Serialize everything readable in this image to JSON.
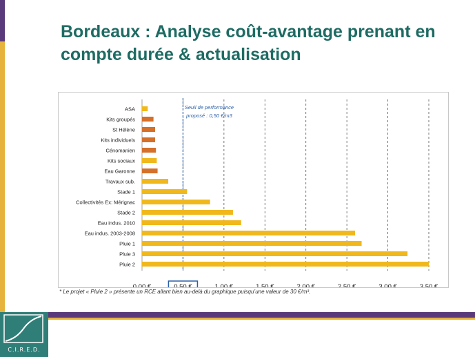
{
  "slide": {
    "title": "Bordeaux : Analyse coût-avantage prenant en compte durée & actualisation",
    "footnote": "* Le projet « Pluie 2 » présente un RCE allant bien au-delà du graphique puisqu’une valeur de 30 €/m³.",
    "logo_text": "C.I.R.E.D."
  },
  "colors": {
    "accent_yellow": "#e6b33c",
    "accent_purple": "#5a3a7a",
    "title_teal": "#1e6b63",
    "bar_orange": "#d4702a",
    "bar_yellow": "#f0b81c",
    "threshold_blue": "#2a5fa8"
  },
  "chart_data": {
    "type": "bar",
    "orientation": "horizontal",
    "categories": [
      "ASA",
      "Kits groupés",
      "St Hélène",
      "Kits individuels",
      "Cénomanien",
      "Kits sociaux",
      "Eau Garonne",
      "Travaux sub.",
      "Stade 1",
      "Collectivités Ex: Mérignac",
      "Stade 2",
      "Eau indus. 2010",
      "Eau indus. 2003-2008",
      "Pluie 1",
      "Pluie 3",
      "Pluie 2"
    ],
    "values": [
      0.07,
      0.14,
      0.16,
      0.16,
      0.17,
      0.18,
      0.19,
      0.32,
      0.55,
      0.83,
      1.11,
      1.21,
      2.6,
      2.68,
      3.24,
      3.5
    ],
    "bar_colors": [
      "#f0b81c",
      "#d4702a",
      "#d4702a",
      "#d4702a",
      "#d4702a",
      "#f0b81c",
      "#d4702a",
      "#f0b81c",
      "#f0b81c",
      "#f0b81c",
      "#f0b81c",
      "#f0b81c",
      "#f0b81c",
      "#f0b81c",
      "#f0b81c",
      "#f0b81c"
    ],
    "xticks": [
      "0,00 €",
      "0,50 €",
      "1,00 €",
      "1,50 €",
      "2,00 €",
      "2,50 €",
      "3,00 €",
      "3,50 €"
    ],
    "xtick_values": [
      0,
      0.5,
      1,
      1.5,
      2,
      2.5,
      3,
      3.5
    ],
    "xlim": [
      0,
      3.5
    ],
    "grid": "vertical dashed",
    "highlighted_tick": "0,50 €",
    "threshold": {
      "value": 0.5,
      "label_line1": "Seuil de performance",
      "label_line2": "proposé : 0,50 €/m3"
    }
  }
}
